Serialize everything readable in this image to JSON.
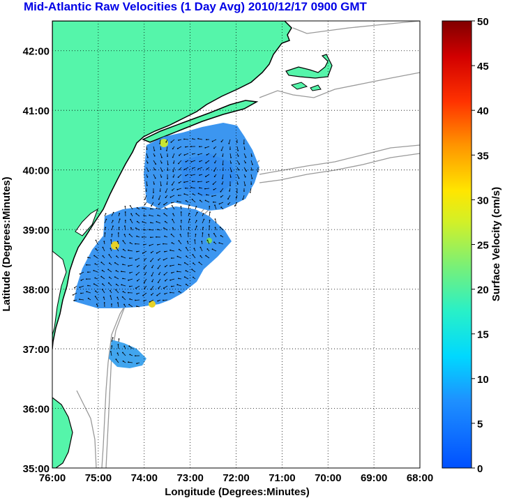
{
  "title": "Mid-Atlantic Raw Velocities (1 Day Avg) 2010/12/17 0900 GMT",
  "map": {
    "xlabel": "Longitude (Degrees:Minutes)",
    "ylabel": "Latitude (Degrees:Minutes)",
    "lon_ticks": [
      "76:00",
      "75:00",
      "74:00",
      "73:00",
      "72:00",
      "71:00",
      "70:00",
      "69:00",
      "68:00"
    ],
    "lat_ticks": [
      "42:00",
      "41:00",
      "40:00",
      "39:00",
      "38:00",
      "37:00",
      "36:00",
      "35:00"
    ],
    "lon_range": [
      -76,
      -68
    ],
    "lat_range": [
      35,
      42.5
    ],
    "land_color": "#55f5aa",
    "coast_color": "#000000",
    "bathymetry_color": "#999999",
    "grid": "dotted"
  },
  "colorbar": {
    "label": "Surface Velocity (cm/s)",
    "ticks": [
      "0",
      "5",
      "10",
      "15",
      "20",
      "25",
      "30",
      "35",
      "40",
      "45",
      "50"
    ],
    "range": [
      0,
      50
    ],
    "colormap": "jet"
  },
  "chart_data": {
    "type": "heatmap",
    "title": "Mid-Atlantic Raw Velocities (1 Day Avg) 2010/12/17 0900 GMT",
    "xlabel": "Longitude (Degrees:Minutes)",
    "ylabel": "Latitude (Degrees:Minutes)",
    "xlim": [
      -76,
      -68
    ],
    "ylim": [
      35,
      42.5
    ],
    "colorbar_label": "Surface Velocity (cm/s)",
    "colorbar_range": [
      0,
      50
    ],
    "typical_speed_cm_s": 6,
    "hotspots": [
      {
        "lon": -74.3,
        "lat": 40.45,
        "speed_cm_s": 22
      },
      {
        "lon": -74.6,
        "lat": 38.85,
        "speed_cm_s": 24
      },
      {
        "lon": -73.75,
        "lat": 37.75,
        "speed_cm_s": 22
      },
      {
        "lon": -72.4,
        "lat": 38.95,
        "speed_cm_s": 18
      }
    ]
  }
}
